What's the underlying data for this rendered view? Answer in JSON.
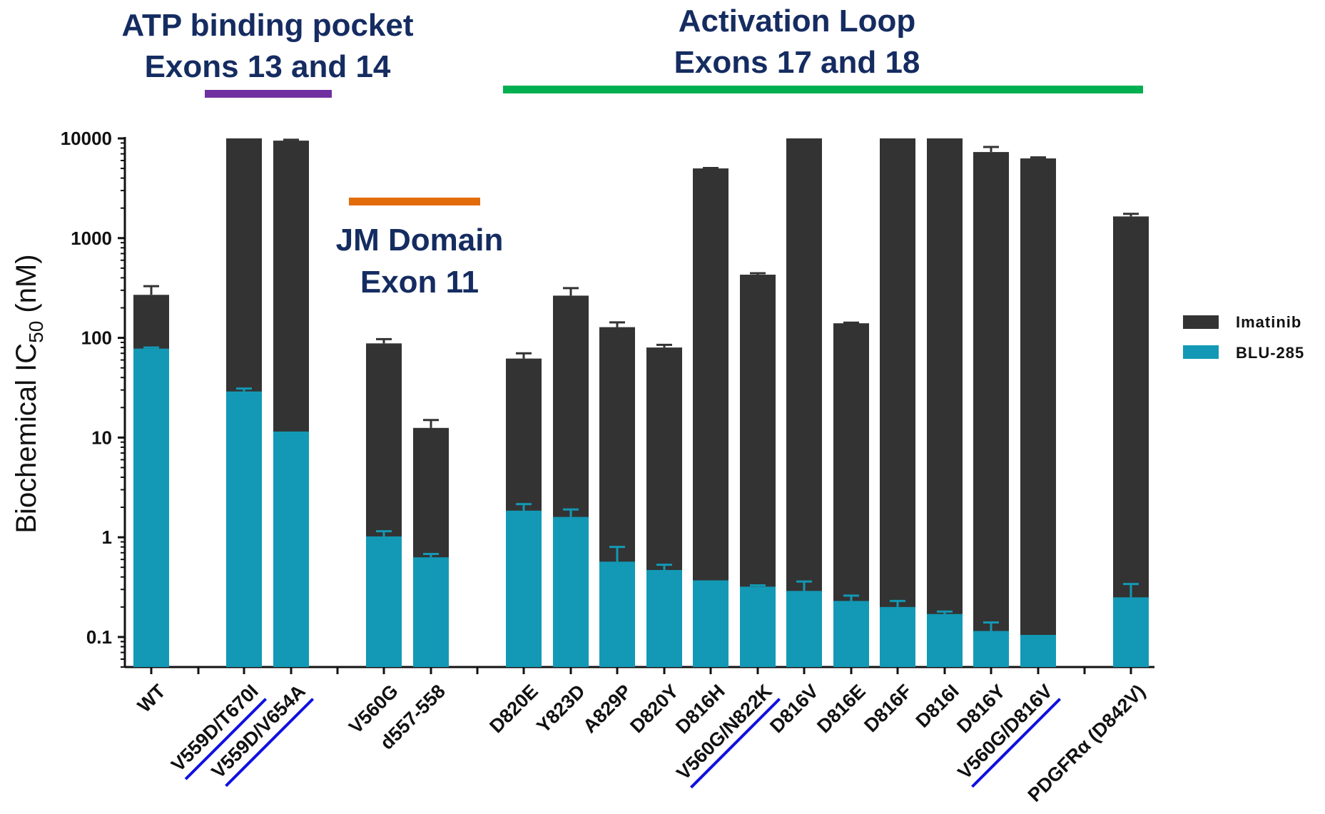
{
  "annotations": {
    "atp": {
      "line1": "ATP binding pocket",
      "line2": "Exons 13 and 14",
      "color": "#7030a0"
    },
    "activation": {
      "line1": "Activation Loop",
      "line2": "Exons 17 and 18",
      "color": "#00b050"
    },
    "jm": {
      "line1": "JM Domain",
      "line2": "Exon 11",
      "color": "#e36c0a"
    }
  },
  "highlight_color": "#1010e0",
  "chart_data": {
    "type": "bar",
    "ylabel_main": "Biochemical IC",
    "ylabel_sub": "50",
    "ylabel_unit": " (nM)",
    "yscale": "log",
    "ylim": [
      0.05,
      10000
    ],
    "yticks": [
      {
        "value": 10000,
        "label": "10000"
      },
      {
        "value": 1000,
        "label": "1000"
      },
      {
        "value": 100,
        "label": "100"
      },
      {
        "value": 10,
        "label": "10"
      },
      {
        "value": 1,
        "label": "1"
      },
      {
        "value": 0.1,
        "label": "0.1"
      }
    ],
    "categories": [
      "WT",
      "V559D/T670I",
      "V559D/V654A",
      "V560G",
      "d557-558",
      "D820E",
      "Y823D",
      "A829P",
      "D820Y",
      "D816H",
      "V560G/N822K",
      "D816V",
      "D816E",
      "D816F",
      "D816I",
      "D816Y",
      "V560G/D816V",
      "PDGFRα (D842V)"
    ],
    "highlighted": [
      "V559D/T670I",
      "V559D/V654A",
      "V560G/N822K",
      "V560G/D816V"
    ],
    "series": [
      {
        "name": "Imatinib",
        "color": "#333333",
        "values": [
          270,
          10000,
          9500,
          88,
          12.5,
          62,
          265,
          128,
          80,
          5000,
          430,
          10000,
          140,
          10000,
          10000,
          7300,
          6300,
          1650
        ],
        "errors": [
          330,
          null,
          9700,
          97,
          15,
          70,
          315,
          143,
          85,
          5050,
          445,
          null,
          142,
          null,
          null,
          8200,
          6450,
          1750
        ]
      },
      {
        "name": "BLU-285",
        "color": "#1399b5",
        "values": [
          78,
          29,
          11.5,
          1.02,
          0.63,
          1.85,
          1.6,
          0.57,
          0.47,
          0.37,
          0.32,
          0.29,
          0.23,
          0.2,
          0.17,
          0.115,
          0.105,
          0.25
        ],
        "errors": [
          80,
          31,
          null,
          1.15,
          0.68,
          2.15,
          1.9,
          0.8,
          0.53,
          null,
          0.33,
          0.36,
          0.26,
          0.23,
          0.18,
          0.14,
          null,
          0.34
        ]
      }
    ],
    "legend_position": "right"
  }
}
